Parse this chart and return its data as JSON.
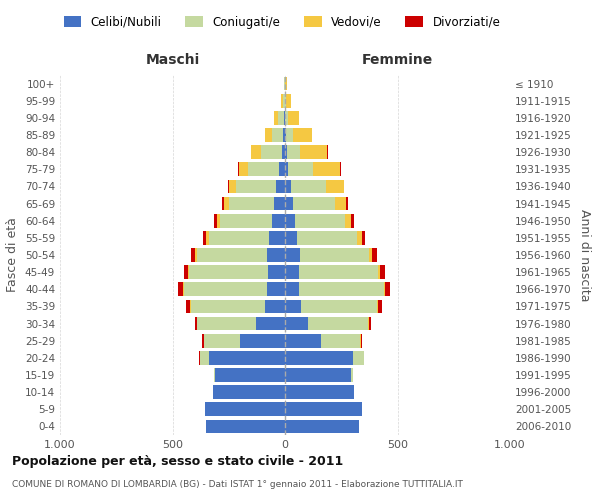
{
  "age_groups": [
    "0-4",
    "5-9",
    "10-14",
    "15-19",
    "20-24",
    "25-29",
    "30-34",
    "35-39",
    "40-44",
    "45-49",
    "50-54",
    "55-59",
    "60-64",
    "65-69",
    "70-74",
    "75-79",
    "80-84",
    "85-89",
    "90-94",
    "95-99",
    "100+"
  ],
  "birth_years": [
    "2006-2010",
    "2001-2005",
    "1996-2000",
    "1991-1995",
    "1986-1990",
    "1981-1985",
    "1976-1980",
    "1971-1975",
    "1966-1970",
    "1961-1965",
    "1956-1960",
    "1951-1955",
    "1946-1950",
    "1941-1945",
    "1936-1940",
    "1931-1935",
    "1926-1930",
    "1921-1925",
    "1916-1920",
    "1911-1915",
    "≤ 1910"
  ],
  "male_celibi": [
    350,
    355,
    320,
    310,
    340,
    200,
    130,
    90,
    80,
    75,
    80,
    70,
    60,
    50,
    40,
    25,
    15,
    8,
    5,
    2,
    1
  ],
  "male_coniugati": [
    0,
    0,
    0,
    5,
    40,
    160,
    260,
    330,
    370,
    350,
    310,
    270,
    230,
    200,
    180,
    140,
    90,
    50,
    25,
    8,
    2
  ],
  "male_vedovi": [
    0,
    0,
    0,
    0,
    0,
    2,
    3,
    3,
    5,
    5,
    8,
    10,
    12,
    20,
    30,
    40,
    45,
    30,
    20,
    8,
    3
  ],
  "male_divorziati": [
    0,
    0,
    0,
    0,
    2,
    5,
    8,
    15,
    20,
    18,
    20,
    15,
    12,
    8,
    5,
    3,
    2,
    1,
    0,
    0,
    0
  ],
  "female_celibi": [
    330,
    340,
    305,
    295,
    300,
    160,
    100,
    70,
    60,
    60,
    65,
    55,
    45,
    35,
    25,
    15,
    8,
    4,
    2,
    1,
    1
  ],
  "female_coniugati": [
    0,
    0,
    0,
    5,
    50,
    175,
    270,
    340,
    380,
    355,
    310,
    265,
    220,
    185,
    155,
    110,
    60,
    30,
    10,
    4,
    1
  ],
  "female_vedovi": [
    0,
    0,
    0,
    0,
    0,
    2,
    3,
    3,
    5,
    8,
    12,
    20,
    30,
    50,
    80,
    120,
    120,
    85,
    50,
    20,
    8
  ],
  "female_divorziati": [
    0,
    0,
    0,
    0,
    2,
    5,
    10,
    18,
    22,
    20,
    22,
    15,
    12,
    8,
    4,
    2,
    1,
    0,
    0,
    0,
    0
  ],
  "color_celibi": "#4472C4",
  "color_coniugati": "#C5D9A0",
  "color_vedovi": "#F5C842",
  "color_divorziati": "#CC0000",
  "title": "Popolazione per età, sesso e stato civile - 2011",
  "subtitle": "COMUNE DI ROMANO DI LOMBARDIA (BG) - Dati ISTAT 1° gennaio 2011 - Elaborazione TUTTITALIA.IT",
  "xlabel_left": "Maschi",
  "xlabel_right": "Femmine",
  "ylabel": "Fasce di età",
  "ylabel_right": "Anni di nascita",
  "xmax": 1000,
  "bg_color": "#ffffff",
  "grid_color": "#cccccc"
}
